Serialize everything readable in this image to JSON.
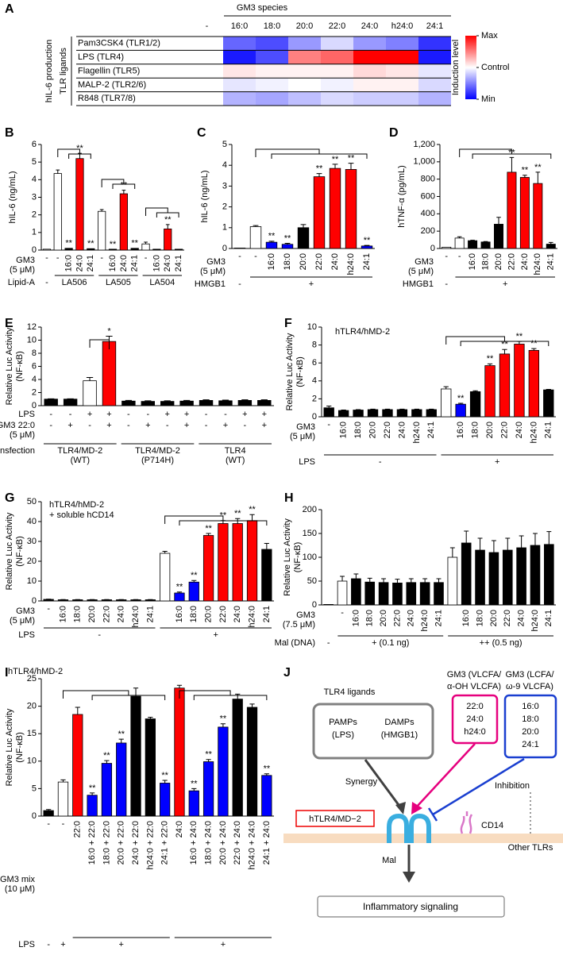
{
  "chart_data": [
    {
      "type": "heatmap",
      "panel": "A",
      "title": "GM3 species",
      "x": [
        "-",
        "16:0",
        "18:0",
        "20:0",
        "22:0",
        "24:0",
        "h24:0",
        "24:1"
      ],
      "y": [
        "Pam3CSK4 (TLR1/2)",
        "LPS (TLR4)",
        "Flagellin (TLR5)",
        "MALP-2 (TLR2/6)",
        "R848 (TLR7/8)"
      ],
      "values": [
        [
          0,
          -0.6,
          -0.7,
          -0.4,
          -0.15,
          -0.4,
          -0.5,
          -0.8
        ],
        [
          0,
          -0.9,
          -0.7,
          0.5,
          0.6,
          1,
          1,
          -0.9
        ],
        [
          0,
          0.1,
          0.05,
          0.05,
          0.05,
          0.15,
          0.1,
          -0.1
        ],
        [
          0,
          -0.1,
          -0.05,
          0,
          -0.05,
          0.05,
          0.05,
          -0.15
        ],
        [
          0,
          -0.3,
          -0.35,
          -0.25,
          -0.15,
          -0.2,
          -0.2,
          -0.3
        ]
      ],
      "zlim": [
        -1,
        1
      ],
      "colors": [
        "#0000ff",
        "#ffffff",
        "#ff0000"
      ],
      "colorbar_ticks": [
        {
          "value": 1,
          "label": "Max"
        },
        {
          "value": 0,
          "label": "Control"
        },
        {
          "value": -1,
          "label": "Min"
        }
      ],
      "colorbar_label": "Induction level",
      "y_group_labels": [
        "hIL-6 production",
        "TLR ligands"
      ]
    },
    {
      "type": "bar",
      "panel": "B",
      "ylabel": [
        "hIL-6 (ng/mL)"
      ],
      "ylim": [
        0,
        6
      ],
      "yticks": [
        0,
        1,
        2,
        3,
        4,
        5,
        6
      ],
      "category_title": [
        "GM3",
        "(5 μM)"
      ],
      "categories": [
        "-",
        "-",
        "16:0",
        "24:0",
        "24:1",
        "-",
        "16:0",
        "24:0",
        "24:1",
        "-",
        "16:0",
        "24:0",
        "24:1"
      ],
      "rows": [
        {
          "title": [
            "Lipid-A"
          ],
          "labels": [
            "-",
            "LA506",
            null,
            null,
            null,
            "LA505",
            null,
            null,
            null,
            "LA504",
            null,
            null,
            null
          ]
        }
      ],
      "values": [
        0.05,
        4.35,
        0.1,
        5.2,
        0.08,
        2.2,
        0.05,
        3.2,
        0.1,
        0.35,
        0.05,
        1.2,
        0.05
      ],
      "errors": [
        null,
        0.2,
        null,
        0.3,
        null,
        0.1,
        null,
        0.2,
        null,
        0.1,
        null,
        0.25,
        null
      ],
      "colors": [
        "#ffffff",
        "#ffffff",
        "#000000",
        "#ff0000",
        "#000000",
        "#ffffff",
        "#000000",
        "#ff0000",
        "#000000",
        "#ffffff",
        "#000000",
        "#ff0000",
        "#000000"
      ],
      "significance": [
        null,
        null,
        "**",
        "**",
        "**",
        null,
        "**",
        "**",
        "**",
        null,
        null,
        "**",
        null
      ]
    },
    {
      "type": "bar",
      "panel": "C",
      "ylabel": [
        "hIL-6 (ng/mL)"
      ],
      "ylim": [
        0,
        5
      ],
      "yticks": [
        0,
        1,
        2,
        3,
        4,
        5
      ],
      "category_title": [
        "GM3",
        "(5 μM)"
      ],
      "categories": [
        "-",
        "-",
        "16:0",
        "18:0",
        "20:0",
        "22:0",
        "24:0",
        "h24:0",
        "24:1"
      ],
      "rows": [
        {
          "title": [
            "HMGB1"
          ],
          "labels": [
            "-",
            "+",
            null,
            null,
            null,
            null,
            null,
            null,
            null
          ]
        }
      ],
      "values": [
        0.02,
        1.05,
        0.3,
        0.2,
        1.0,
        3.45,
        3.85,
        3.8,
        0.12
      ],
      "errors": [
        null,
        0.05,
        0.05,
        0.05,
        0.15,
        0.15,
        0.2,
        0.3,
        0.03
      ],
      "colors": [
        "#ffffff",
        "#ffffff",
        "#0000ff",
        "#0000ff",
        "#000000",
        "#ff0000",
        "#ff0000",
        "#ff0000",
        "#0000ff"
      ],
      "significance": [
        null,
        null,
        "**",
        "**",
        null,
        "**",
        "**",
        "**",
        "**"
      ]
    },
    {
      "type": "bar",
      "panel": "D",
      "ylabel": [
        "hTNF-α (pg/mL)"
      ],
      "ylim": [
        0,
        1200
      ],
      "yticks": [
        0,
        200,
        400,
        600,
        800,
        {
          "value": 1000,
          "label": "1,000"
        },
        {
          "value": 1200,
          "label": "1,200"
        }
      ],
      "category_title": [
        "GM3",
        "(5 μM)"
      ],
      "categories": [
        "-",
        "-",
        "16:0",
        "18:0",
        "20:0",
        "22:0",
        "24:0",
        "h24:0",
        "24:1"
      ],
      "rows": [
        {
          "title": [
            "HMGB1"
          ],
          "labels": [
            "-",
            "+",
            null,
            null,
            null,
            null,
            null,
            null,
            null
          ]
        }
      ],
      "values": [
        15,
        120,
        90,
        75,
        280,
        880,
        820,
        750,
        50
      ],
      "errors": [
        null,
        15,
        5,
        5,
        80,
        170,
        25,
        130,
        20
      ],
      "colors": [
        "#ffffff",
        "#ffffff",
        "#000000",
        "#000000",
        "#000000",
        "#ff0000",
        "#ff0000",
        "#ff0000",
        "#000000"
      ],
      "significance": [
        null,
        null,
        null,
        null,
        null,
        "**",
        "**",
        "**",
        null
      ]
    },
    {
      "type": "bar",
      "panel": "E",
      "ylabel": [
        "Relative Luc Activity",
        "(NF-κB)"
      ],
      "ylim": [
        0,
        12
      ],
      "yticks": [
        0,
        2,
        4,
        6,
        8,
        10,
        12
      ],
      "rows": [
        {
          "title": [
            "LPS"
          ],
          "labels": [
            "-",
            "-",
            "+",
            "+",
            "-",
            "-",
            "+",
            "+",
            "-",
            "-",
            "+",
            "+"
          ]
        },
        {
          "title": [
            "GM3 22:0",
            "(5 μM)"
          ],
          "labels": [
            "-",
            "+",
            "-",
            "+",
            "-",
            "+",
            "-",
            "+",
            "-",
            "+",
            "-",
            "+"
          ]
        },
        {
          "title": [
            "Transfection"
          ],
          "labels": [
            [
              "TLR4/MD-2",
              "(WT)"
            ],
            null,
            null,
            null,
            [
              "TLR4/MD-2",
              "(P714H)"
            ],
            null,
            null,
            null,
            [
              "TLR4",
              "(WT)"
            ],
            null,
            null,
            null
          ]
        }
      ],
      "values": [
        1.0,
        1.0,
        3.8,
        9.8,
        0.7,
        0.65,
        0.65,
        0.7,
        0.8,
        0.75,
        0.8,
        0.8
      ],
      "errors": [
        0.05,
        0.05,
        0.5,
        0.8,
        0.1,
        0.1,
        0.1,
        0.1,
        0.1,
        0.1,
        0.1,
        0.1
      ],
      "colors": [
        "#000000",
        "#000000",
        "#ffffff",
        "#ff0000",
        "#000000",
        "#000000",
        "#000000",
        "#000000",
        "#000000",
        "#000000",
        "#000000",
        "#000000"
      ],
      "significance": [
        null,
        null,
        null,
        "*",
        null,
        null,
        null,
        null,
        null,
        null,
        null,
        null
      ]
    },
    {
      "type": "bar",
      "panel": "F",
      "subtitle": [
        "hTLR4/hMD-2"
      ],
      "ylabel": [
        "Relative Luc Activity",
        "(NF-κB)"
      ],
      "ylim": [
        0,
        10
      ],
      "yticks": [
        0,
        2,
        4,
        6,
        8,
        10
      ],
      "category_title": [
        "GM3",
        "(5 μM)"
      ],
      "categories": [
        "-",
        "16:0",
        "18:0",
        "20:0",
        "22:0",
        "24:0",
        "h24:0",
        "24:1",
        null,
        "16:0",
        "18:0",
        "20:0",
        "22:0",
        "24:0",
        "h24:0",
        "24:1"
      ],
      "rows": [
        {
          "title": [
            "LPS"
          ],
          "labels": [
            "-",
            null,
            null,
            null,
            null,
            null,
            null,
            null,
            "+",
            null,
            null,
            null,
            null,
            null,
            null,
            null
          ]
        }
      ],
      "values": [
        1.0,
        0.7,
        0.75,
        0.8,
        0.8,
        0.8,
        0.8,
        0.8,
        3.1,
        1.4,
        2.8,
        5.7,
        7.0,
        8.1,
        7.4,
        3.0
      ],
      "errors": [
        0.2,
        0.05,
        0.05,
        0.05,
        0.05,
        0.05,
        0.05,
        0.05,
        0.25,
        0.1,
        0.1,
        0.2,
        0.5,
        0.3,
        0.2,
        0.05
      ],
      "colors": [
        "#000000",
        "#000000",
        "#000000",
        "#000000",
        "#000000",
        "#000000",
        "#000000",
        "#000000",
        "#ffffff",
        "#0000ff",
        "#000000",
        "#ff0000",
        "#ff0000",
        "#ff0000",
        "#ff0000",
        "#000000"
      ],
      "significance": [
        null,
        null,
        null,
        null,
        null,
        null,
        null,
        null,
        null,
        "**",
        null,
        "**",
        "**",
        "**",
        "**",
        null
      ]
    },
    {
      "type": "bar",
      "panel": "G",
      "subtitle": [
        "hTLR4/hMD-2",
        "+ soluble hCD14"
      ],
      "ylabel": [
        "Relative Luc Activity",
        "(NF-κB)"
      ],
      "ylim": [
        0,
        50
      ],
      "yticks": [
        0,
        10,
        20,
        30,
        40,
        50
      ],
      "category_title": [
        "GM3",
        "(5 μM)"
      ],
      "categories": [
        "-",
        "16:0",
        "18:0",
        "20:0",
        "22:0",
        "24:0",
        "h24:0",
        "24:1",
        null,
        "16:0",
        "18:0",
        "20:0",
        "22:0",
        "24:0",
        "h24:0",
        "24:1"
      ],
      "rows": [
        {
          "title": [
            "LPS"
          ],
          "labels": [
            "-",
            null,
            null,
            null,
            null,
            null,
            null,
            null,
            "+",
            null,
            null,
            null,
            null,
            null,
            null,
            null
          ]
        }
      ],
      "values": [
        0.8,
        0.6,
        0.6,
        0.6,
        0.6,
        0.6,
        0.6,
        0.6,
        24,
        4,
        9.5,
        33,
        39,
        39,
        40.5,
        26
      ],
      "errors": [
        0.1,
        0.1,
        0.1,
        0.1,
        0.1,
        0.1,
        0.1,
        0.1,
        1,
        0.5,
        0.8,
        1,
        1.5,
        2.5,
        3,
        3
      ],
      "colors": [
        "#000000",
        "#000000",
        "#000000",
        "#000000",
        "#000000",
        "#000000",
        "#000000",
        "#000000",
        "#ffffff",
        "#0000ff",
        "#0000ff",
        "#ff0000",
        "#ff0000",
        "#ff0000",
        "#ff0000",
        "#000000"
      ],
      "significance": [
        null,
        null,
        null,
        null,
        null,
        null,
        null,
        null,
        null,
        "**",
        "**",
        "**",
        "**",
        "**",
        "**",
        null
      ]
    },
    {
      "type": "bar",
      "panel": "H",
      "ylabel": [
        "Relative Luc Activity",
        "(NF-κB)"
      ],
      "ylim": [
        0,
        200
      ],
      "yticks": [
        0,
        50,
        100,
        150,
        200
      ],
      "category_title": [
        "GM3",
        "(7.5 μM)"
      ],
      "categories": [
        null,
        "-",
        "16:0",
        "18:0",
        "20:0",
        "22:0",
        "24:0",
        "h24:0",
        "24:1",
        null,
        "16:0",
        "18:0",
        "20:0",
        "22:0",
        "24:0",
        "h24:0",
        "24:1"
      ],
      "rows": [
        {
          "title": [
            "Mal (DNA)"
          ],
          "labels": [
            "-",
            "+ (0.1 ng)",
            null,
            null,
            null,
            null,
            null,
            null,
            null,
            "++ (0.5 ng)",
            null,
            null,
            null,
            null,
            null,
            null,
            null
          ]
        }
      ],
      "values": [
        1,
        50,
        55,
        48,
        47,
        46,
        47,
        47,
        47,
        100,
        130,
        115,
        110,
        115,
        120,
        125,
        127
      ],
      "errors": [
        null,
        10,
        10,
        8,
        8,
        8,
        8,
        8,
        8,
        20,
        25,
        25,
        25,
        25,
        25,
        25,
        27
      ],
      "colors": [
        "#ffffff",
        "#ffffff",
        "#000000",
        "#000000",
        "#000000",
        "#000000",
        "#000000",
        "#000000",
        "#000000",
        "#ffffff",
        "#000000",
        "#000000",
        "#000000",
        "#000000",
        "#000000",
        "#000000",
        "#000000"
      ],
      "significance": [
        null,
        null,
        null,
        null,
        null,
        null,
        null,
        null,
        null,
        null,
        null,
        null,
        null,
        null,
        null,
        null,
        null
      ]
    },
    {
      "type": "bar",
      "panel": "I",
      "subtitle": [
        "hTLR4/hMD-2"
      ],
      "ylabel": [
        "Relative Luc Activity",
        "(NF-κB)"
      ],
      "ylim": [
        0,
        25
      ],
      "yticks": [
        0,
        5,
        10,
        15,
        20,
        25
      ],
      "category_title": [
        "GM3 mix",
        "(10 μM)"
      ],
      "categories": [
        "-",
        "-",
        "22:0",
        "16:0 + 22:0",
        "18:0 + 22:0",
        "20:0 + 22:0",
        "24:0 + 22:0",
        "h24:0 + 22:0",
        "24:1 + 22:0",
        "24:0",
        "16:0 + 24:0",
        "18:0 + 24:0",
        "20:0 + 24:0",
        "22:0 + 24:0",
        "h24:0 + 24:0",
        "24:1 + 24:0"
      ],
      "rows": [
        {
          "title": [
            "LPS"
          ],
          "labels": [
            "-",
            "+",
            "+",
            null,
            null,
            null,
            null,
            null,
            null,
            "+",
            null,
            null,
            null,
            null,
            null,
            null
          ]
        }
      ],
      "values": [
        1.0,
        6.2,
        18.5,
        3.8,
        9.6,
        13.3,
        21.8,
        17.7,
        6.0,
        23.3,
        4.6,
        9.9,
        16.2,
        21.3,
        19.8,
        7.4
      ],
      "errors": [
        0.2,
        0.4,
        1.3,
        0.4,
        0.5,
        0.7,
        1.5,
        0.3,
        0.5,
        0.5,
        0.4,
        0.4,
        0.6,
        0.9,
        0.6,
        0.3
      ],
      "colors": [
        "#000000",
        "#ffffff",
        "#ff0000",
        "#0000ff",
        "#0000ff",
        "#0000ff",
        "#000000",
        "#000000",
        "#0000ff",
        "#ff0000",
        "#0000ff",
        "#0000ff",
        "#0000ff",
        "#000000",
        "#000000",
        "#0000ff"
      ],
      "significance": [
        null,
        null,
        null,
        "**",
        "**",
        "**",
        null,
        null,
        "**",
        null,
        "**",
        "**",
        "**",
        null,
        null,
        "**"
      ]
    }
  ],
  "diagram": {
    "panel": "J",
    "ligands_title": "TLR4 ligands",
    "pamps": [
      "PAMPs",
      "(LPS)"
    ],
    "damps": [
      "DAMPs",
      "(HMGB1)"
    ],
    "gm3_vlcfa": {
      "title": [
        "GM3 (VLCFA/",
        "α-OH VLCFA)"
      ],
      "species": [
        "22:0",
        "24:0",
        "h24:0"
      ]
    },
    "gm3_lcfa": {
      "title": [
        "GM3 (LCFA/",
        "ω-9 VLCFA)"
      ],
      "species": [
        "16:0",
        "18:0",
        "20:0",
        "24:1"
      ]
    },
    "synergy": "Synergy",
    "inhibition": "Inhibition",
    "receptor": "hTLR4/MD−2",
    "cd14": "CD14",
    "other_tlrs": "Other TLRs",
    "adaptor": "Mal",
    "output": "Inflammatory signaling"
  }
}
